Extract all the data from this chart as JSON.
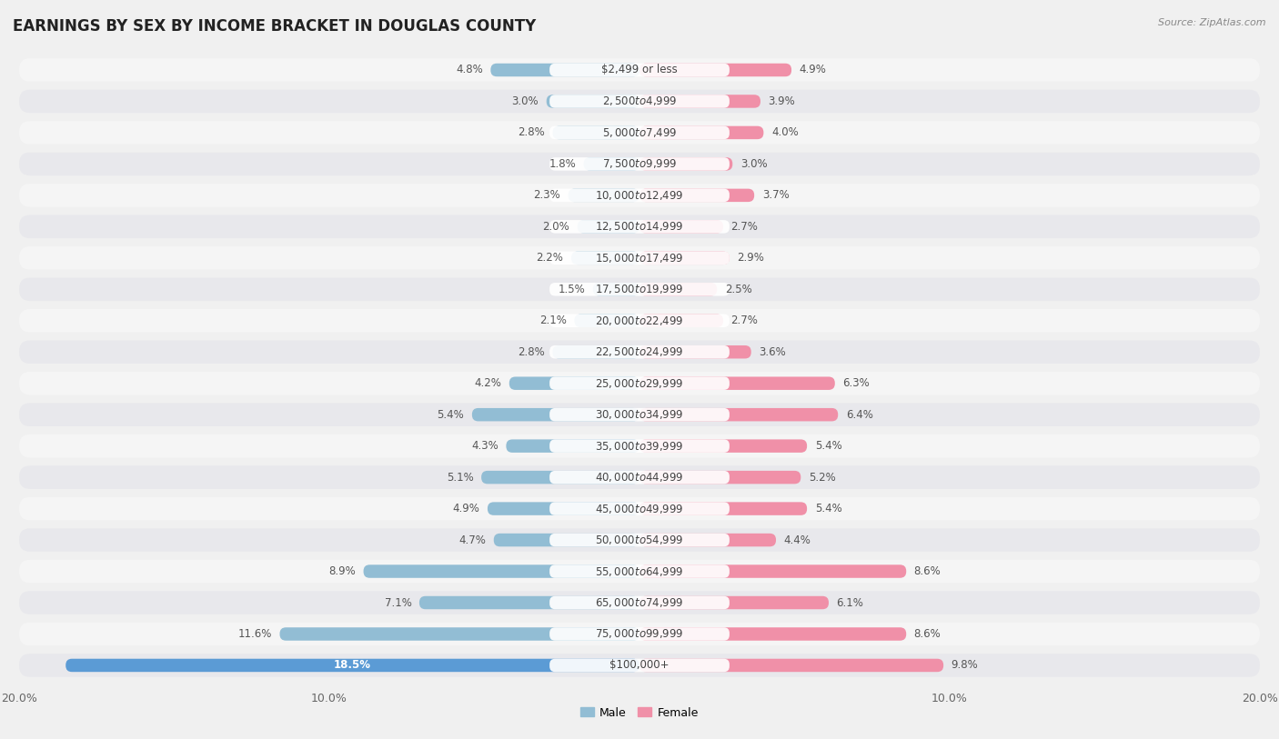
{
  "title": "EARNINGS BY SEX BY INCOME BRACKET IN DOUGLAS COUNTY",
  "source": "Source: ZipAtlas.com",
  "categories": [
    "$2,499 or less",
    "$2,500 to $4,999",
    "$5,000 to $7,499",
    "$7,500 to $9,999",
    "$10,000 to $12,499",
    "$12,500 to $14,999",
    "$15,000 to $17,499",
    "$17,500 to $19,999",
    "$20,000 to $22,499",
    "$22,500 to $24,999",
    "$25,000 to $29,999",
    "$30,000 to $34,999",
    "$35,000 to $39,999",
    "$40,000 to $44,999",
    "$45,000 to $49,999",
    "$50,000 to $54,999",
    "$55,000 to $64,999",
    "$65,000 to $74,999",
    "$75,000 to $99,999",
    "$100,000+"
  ],
  "male_values": [
    4.8,
    3.0,
    2.8,
    1.8,
    2.3,
    2.0,
    2.2,
    1.5,
    2.1,
    2.8,
    4.2,
    5.4,
    4.3,
    5.1,
    4.9,
    4.7,
    8.9,
    7.1,
    11.6,
    18.5
  ],
  "female_values": [
    4.9,
    3.9,
    4.0,
    3.0,
    3.7,
    2.7,
    2.9,
    2.5,
    2.7,
    3.6,
    6.3,
    6.4,
    5.4,
    5.2,
    5.4,
    4.4,
    8.6,
    6.1,
    8.6,
    9.8
  ],
  "male_color": "#92bdd4",
  "female_color": "#f090a8",
  "male_highlight_color": "#5b9bd5",
  "row_bg_odd": "#f5f5f5",
  "row_bg_even": "#e8e8ec",
  "axis_max": 20.0,
  "background_color": "#f0f0f0",
  "title_fontsize": 12,
  "label_fontsize": 8.5,
  "tick_fontsize": 9,
  "cat_fontsize": 8.5
}
